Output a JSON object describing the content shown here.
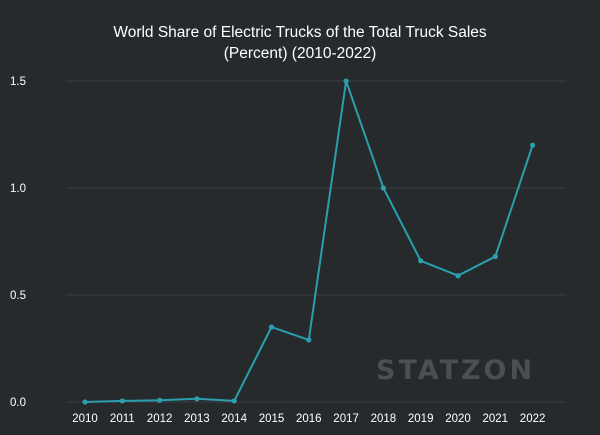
{
  "chart_data": {
    "type": "line",
    "title_line1": "World Share of Electric Trucks of the Total Truck Sales",
    "title_line2": "(Percent) (2010-2022)",
    "xlabel": "",
    "ylabel": "",
    "x": [
      "2010",
      "2011",
      "2012",
      "2013",
      "2014",
      "2015",
      "2016",
      "2017",
      "2018",
      "2019",
      "2020",
      "2021",
      "2022"
    ],
    "series": [
      {
        "values": [
          0.0,
          0.005,
          0.008,
          0.015,
          0.005,
          0.35,
          0.29,
          1.5,
          1.0,
          0.66,
          0.59,
          0.68,
          1.2
        ]
      }
    ],
    "yticks": [
      "0.0",
      "0.5",
      "1.0",
      "1.5"
    ],
    "ytick_values": [
      0,
      0.5,
      1.0,
      1.5
    ],
    "ylim": [
      0,
      1.5
    ],
    "grid": "horizontal",
    "line_color": "#2a9fae"
  },
  "watermark": "STATZON"
}
